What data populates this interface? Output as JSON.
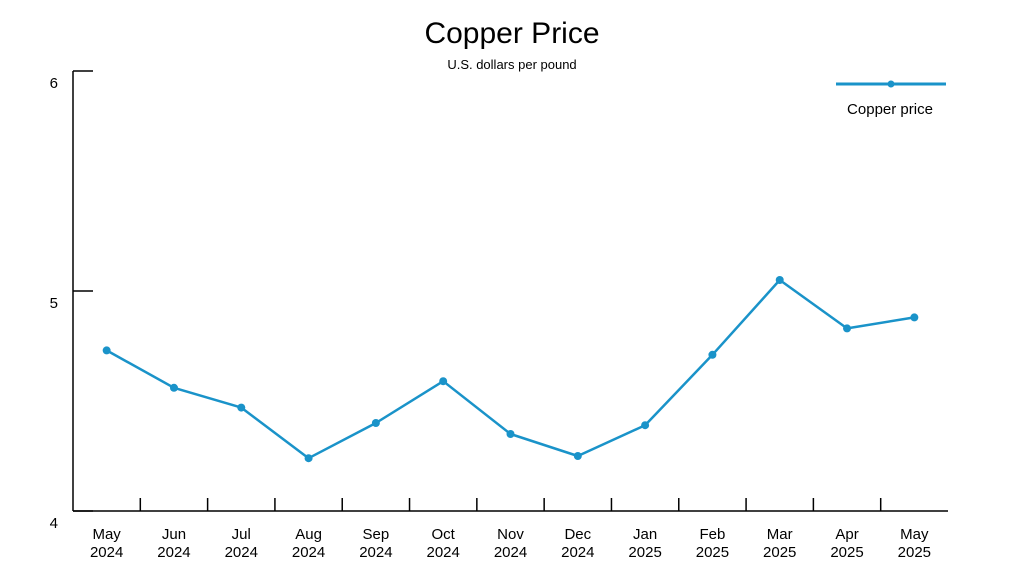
{
  "colors": {
    "series": "#1a93c9",
    "axis": "#000000",
    "background": "#ffffff"
  },
  "chart_data": {
    "type": "line",
    "title": "Copper Price",
    "subtitle": "U.S. dollars per pound",
    "xlabel": "",
    "ylabel": "",
    "categories": [
      [
        "May",
        "2024"
      ],
      [
        "Jun",
        "2024"
      ],
      [
        "Jul",
        "2024"
      ],
      [
        "Aug",
        "2024"
      ],
      [
        "Sep",
        "2024"
      ],
      [
        "Oct",
        "2024"
      ],
      [
        "Nov",
        "2024"
      ],
      [
        "Dec",
        "2024"
      ],
      [
        "Jan",
        "2025"
      ],
      [
        "Feb",
        "2025"
      ],
      [
        "Mar",
        "2025"
      ],
      [
        "Apr",
        "2025"
      ],
      [
        "May",
        "2025"
      ]
    ],
    "series": [
      {
        "name": "Copper price",
        "values": [
          4.73,
          4.56,
          4.47,
          4.24,
          4.4,
          4.59,
          4.35,
          4.25,
          4.39,
          4.71,
          5.05,
          4.83,
          4.88
        ]
      }
    ],
    "ylim": [
      4,
      6
    ],
    "yticks": [
      "4",
      "5",
      "6"
    ],
    "grid": false,
    "legend_position": "top-right"
  }
}
